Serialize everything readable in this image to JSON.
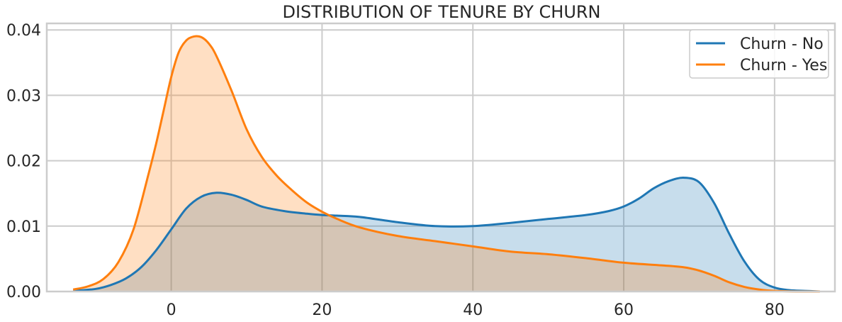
{
  "chart_data": {
    "type": "area",
    "title": "DISTRIBUTION OF TENURE BY CHURN",
    "xlabel": "",
    "ylabel": "",
    "xlim": [
      -16.5,
      88
    ],
    "ylim": [
      0,
      0.041
    ],
    "x_ticks": [
      0,
      20,
      40,
      60,
      80
    ],
    "x_tick_labels": [
      "0",
      "20",
      "40",
      "60",
      "80"
    ],
    "y_ticks": [
      0.0,
      0.01,
      0.02,
      0.03,
      0.04
    ],
    "y_tick_labels": [
      "0.00",
      "0.01",
      "0.02",
      "0.03",
      "0.04"
    ],
    "grid": true,
    "legend_position": "top-right",
    "series": [
      {
        "name": "Churn - No",
        "color": "#1f77b4",
        "fill": "#c6dbec",
        "x": [
          -13,
          -10,
          -8,
          -6,
          -4,
          -2,
          0,
          2,
          4,
          6,
          8,
          10,
          12,
          15,
          18,
          20,
          22,
          25,
          30,
          35,
          40,
          45,
          50,
          55,
          58,
          60,
          62,
          64,
          66,
          68,
          70,
          72,
          74,
          76,
          78,
          80,
          82,
          84,
          86
        ],
        "y": [
          0.0001,
          0.0004,
          0.001,
          0.002,
          0.0037,
          0.0063,
          0.0095,
          0.0127,
          0.0145,
          0.0151,
          0.0148,
          0.014,
          0.013,
          0.0123,
          0.0119,
          0.0117,
          0.0116,
          0.0114,
          0.0106,
          0.01,
          0.01,
          0.0105,
          0.0111,
          0.0117,
          0.0123,
          0.013,
          0.0142,
          0.0158,
          0.0169,
          0.0174,
          0.0167,
          0.0135,
          0.0088,
          0.0046,
          0.0018,
          0.0006,
          0.0002,
          0.0001,
          0.0
        ]
      },
      {
        "name": "Churn - Yes",
        "color": "#ff7f0e",
        "fill": "#fdd9bd",
        "x": [
          -13,
          -11,
          -9,
          -7,
          -5,
          -3,
          -2,
          -1,
          0,
          1,
          2,
          3,
          4,
          5,
          6,
          8,
          10,
          12,
          14,
          16,
          18,
          20,
          22,
          25,
          30,
          35,
          40,
          45,
          50,
          55,
          60,
          65,
          68,
          70,
          72,
          74,
          76,
          78,
          80,
          83,
          86
        ],
        "y": [
          0.0003,
          0.0008,
          0.0019,
          0.0045,
          0.0095,
          0.018,
          0.0226,
          0.0277,
          0.0328,
          0.0366,
          0.0384,
          0.039,
          0.0389,
          0.0379,
          0.036,
          0.0307,
          0.0248,
          0.0206,
          0.0177,
          0.0155,
          0.0136,
          0.0122,
          0.0111,
          0.0098,
          0.0085,
          0.0077,
          0.0069,
          0.0061,
          0.0057,
          0.0051,
          0.0044,
          0.004,
          0.0037,
          0.0032,
          0.0024,
          0.0014,
          0.0007,
          0.0003,
          0.0001,
          0.0,
          0.0
        ]
      }
    ]
  }
}
